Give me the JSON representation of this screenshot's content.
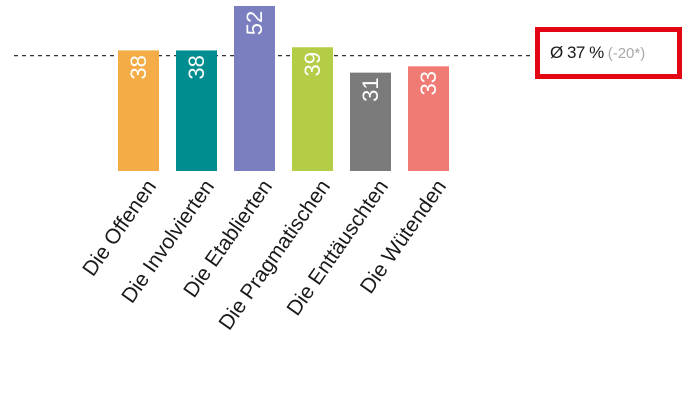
{
  "chart_data": {
    "type": "bar",
    "categories": [
      "Die Offenen",
      "Die Involvierten",
      "Die Etablierten",
      "Die Pragmatischen",
      "Die Enttäuschten",
      "Die Wütenden"
    ],
    "values": [
      38,
      38,
      52,
      39,
      31,
      33
    ],
    "colors": [
      "#f4ad46",
      "#008d8f",
      "#7b7fbf",
      "#b4cd46",
      "#7b7b7b",
      "#ef7b74"
    ],
    "average_line": 37,
    "average_label": "Ø 37 %",
    "average_delta": "(-20*)",
    "title": "",
    "xlabel": "",
    "ylabel": "",
    "ylim": [
      0,
      52
    ],
    "grid": false,
    "legend": "none"
  }
}
